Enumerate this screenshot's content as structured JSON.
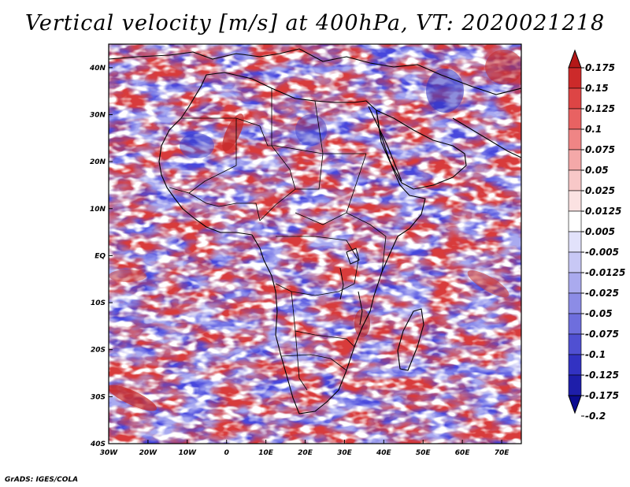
{
  "title": "Vertical velocity [m/s] at 400hPa, VT: 2020021218",
  "credit": "GrADS: IGES/COLA",
  "map": {
    "lon_range": [
      -30,
      75
    ],
    "lat_range": [
      -40,
      45
    ],
    "lon_ticks": [
      "30W",
      "20W",
      "10W",
      "0",
      "10E",
      "20E",
      "30E",
      "40E",
      "50E",
      "60E",
      "70E"
    ],
    "lat_ticks": [
      "40S",
      "30S",
      "20S",
      "10S",
      "EQ",
      "10N",
      "20N",
      "30N",
      "40N"
    ],
    "lon_tick_values": [
      -30,
      -20,
      -10,
      0,
      10,
      20,
      30,
      40,
      50,
      60,
      70
    ],
    "lat_tick_values": [
      -40,
      -30,
      -20,
      -10,
      0,
      10,
      20,
      30,
      40
    ]
  },
  "colorbar": {
    "labels": [
      "0.175",
      "0.15",
      "0.125",
      "0.1",
      "0.075",
      "0.05",
      "0.025",
      "0.0125",
      "0.005",
      "-0.005",
      "-0.0125",
      "-0.025",
      "-0.05",
      "-0.075",
      "-0.1",
      "-0.125",
      "-0.175",
      "-0.2"
    ],
    "colors": [
      "#b41818",
      "#cc2a2a",
      "#dd4545",
      "#e86262",
      "#ef8585",
      "#f4a8a8",
      "#f8c8c8",
      "#fbe2e2",
      "#ffffff",
      "#e2e2fb",
      "#c8c8f5",
      "#aaaaee",
      "#8c8ce6",
      "#6e6edd",
      "#5050d2",
      "#3232c2",
      "#1e1eaa",
      "#0c0c90"
    ]
  },
  "colors": {
    "positive": "#d23c3c",
    "negative": "#5a5ae6",
    "background": "#f4f4fb"
  }
}
